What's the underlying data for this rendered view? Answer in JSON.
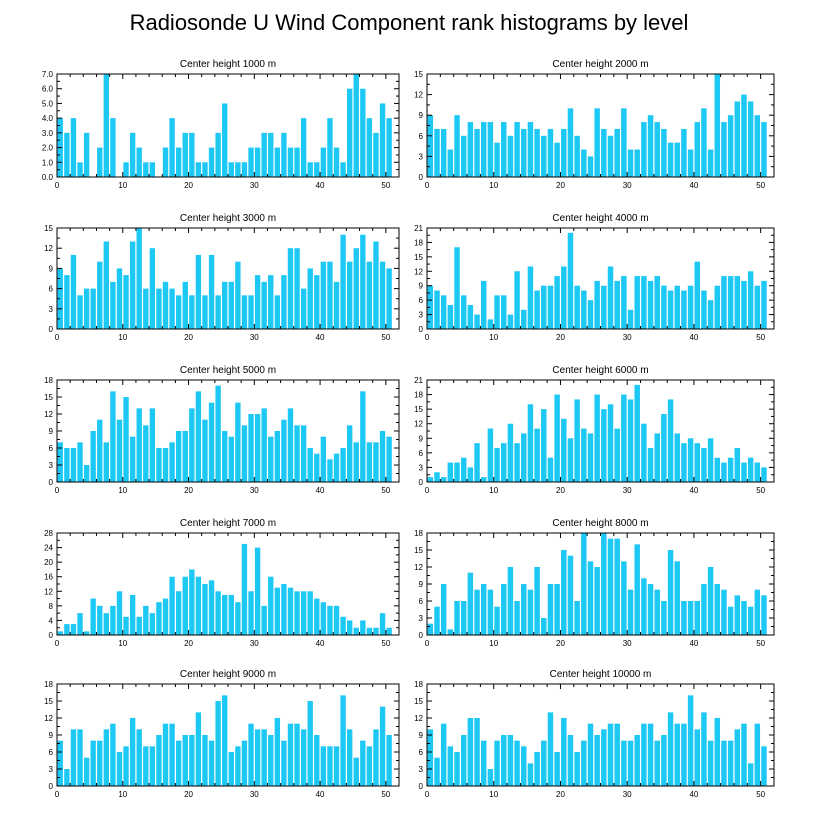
{
  "title": "Radiosonde U Wind Component rank histograms by level",
  "colors": {
    "bar": "#1ec8f5",
    "axis": "#000000"
  },
  "chart_data": [
    {
      "type": "bar",
      "title": "Center height 1000 m",
      "xlim": [
        0,
        52
      ],
      "ylim": [
        0,
        7
      ],
      "xticks": [
        0,
        10,
        20,
        30,
        40,
        50
      ],
      "yticks": [
        0,
        1,
        2,
        3,
        4,
        5,
        6,
        7
      ],
      "ytick_labels": [
        "0.0",
        "1.0",
        "2.0",
        "3.0",
        "4.0",
        "5.0",
        "6.0",
        "7.0"
      ],
      "values": [
        4,
        3,
        4,
        1,
        3,
        0,
        2,
        7,
        4,
        0,
        1,
        3,
        2,
        1,
        1,
        0,
        2,
        4,
        2,
        3,
        3,
        1,
        1,
        2,
        3,
        5,
        1,
        1,
        1,
        2,
        2,
        3,
        3,
        2,
        3,
        2,
        2,
        4,
        1,
        1,
        2,
        4,
        2,
        1,
        6,
        7,
        6,
        4,
        3,
        5,
        4
      ]
    },
    {
      "type": "bar",
      "title": "Center height 2000 m",
      "xlim": [
        0,
        52
      ],
      "ylim": [
        0,
        15
      ],
      "xticks": [
        0,
        10,
        20,
        30,
        40,
        50
      ],
      "yticks": [
        0,
        3,
        6,
        9,
        12,
        15
      ],
      "ytick_labels": [
        "0",
        "3",
        "6",
        "9",
        "12",
        "15"
      ],
      "values": [
        9,
        7,
        7,
        4,
        9,
        6,
        8,
        7,
        8,
        8,
        5,
        8,
        6,
        8,
        7,
        8,
        7,
        6,
        7,
        5,
        7,
        10,
        6,
        4,
        3,
        10,
        7,
        6,
        7,
        10,
        4,
        4,
        8,
        9,
        8,
        7,
        5,
        5,
        7,
        4,
        8,
        10,
        4,
        15,
        8,
        9,
        11,
        12,
        11,
        9,
        8
      ]
    },
    {
      "type": "bar",
      "title": "Center height 3000 m",
      "xlim": [
        0,
        52
      ],
      "ylim": [
        0,
        15
      ],
      "xticks": [
        0,
        10,
        20,
        30,
        40,
        50
      ],
      "yticks": [
        0,
        3,
        6,
        9,
        12,
        15
      ],
      "ytick_labels": [
        "0",
        "3",
        "6",
        "9",
        "12",
        "15"
      ],
      "values": [
        9,
        8,
        11,
        5,
        6,
        6,
        10,
        13,
        7,
        9,
        8,
        13,
        15,
        6,
        12,
        6,
        7,
        6,
        5,
        7,
        5,
        11,
        5,
        11,
        5,
        7,
        7,
        10,
        5,
        5,
        8,
        7,
        8,
        5,
        8,
        12,
        12,
        6,
        9,
        8,
        10,
        10,
        7,
        14,
        10,
        12,
        14,
        10,
        13,
        10,
        9
      ]
    },
    {
      "type": "bar",
      "title": "Center height 4000 m",
      "xlim": [
        0,
        52
      ],
      "ylim": [
        0,
        21
      ],
      "xticks": [
        0,
        10,
        20,
        30,
        40,
        50
      ],
      "yticks": [
        0,
        3,
        6,
        9,
        12,
        15,
        18,
        21
      ],
      "ytick_labels": [
        "0",
        "3",
        "6",
        "9",
        "12",
        "15",
        "18",
        "21"
      ],
      "values": [
        9,
        8,
        7,
        5,
        17,
        7,
        5,
        3,
        10,
        2,
        7,
        7,
        3,
        12,
        4,
        13,
        8,
        9,
        9,
        11,
        13,
        20,
        9,
        8,
        6,
        10,
        9,
        13,
        10,
        11,
        4,
        11,
        11,
        10,
        11,
        9,
        8,
        9,
        8,
        9,
        14,
        8,
        6,
        9,
        11,
        11,
        11,
        10,
        12,
        9,
        10
      ]
    },
    {
      "type": "bar",
      "title": "Center height 5000 m",
      "xlim": [
        0,
        52
      ],
      "ylim": [
        0,
        18
      ],
      "xticks": [
        0,
        10,
        20,
        30,
        40,
        50
      ],
      "yticks": [
        0,
        3,
        6,
        9,
        12,
        15,
        18
      ],
      "ytick_labels": [
        "0",
        "3",
        "6",
        "9",
        "12",
        "15",
        "18"
      ],
      "values": [
        7,
        6,
        6,
        7,
        3,
        9,
        11,
        7,
        16,
        11,
        15,
        8,
        13,
        10,
        13,
        6,
        6,
        7,
        9,
        9,
        13,
        16,
        11,
        14,
        17,
        9,
        8,
        14,
        10,
        12,
        12,
        13,
        8,
        9,
        11,
        13,
        10,
        10,
        6,
        5,
        8,
        4,
        5,
        6,
        10,
        7,
        16,
        7,
        7,
        9,
        8
      ]
    },
    {
      "type": "bar",
      "title": "Center height 6000 m",
      "xlim": [
        0,
        52
      ],
      "ylim": [
        0,
        21
      ],
      "xticks": [
        0,
        10,
        20,
        30,
        40,
        50
      ],
      "yticks": [
        0,
        3,
        6,
        9,
        12,
        15,
        18,
        21
      ],
      "ytick_labels": [
        "0",
        "3",
        "6",
        "9",
        "12",
        "15",
        "18",
        "21"
      ],
      "values": [
        1,
        2,
        1,
        4,
        4,
        5,
        3,
        8,
        1,
        11,
        7,
        8,
        12,
        8,
        10,
        16,
        11,
        15,
        5,
        18,
        13,
        9,
        17,
        11,
        10,
        18,
        15,
        16,
        11,
        18,
        17,
        20,
        12,
        7,
        10,
        14,
        17,
        10,
        8,
        9,
        8,
        7,
        9,
        5,
        4,
        5,
        7,
        4,
        5,
        4,
        3
      ]
    },
    {
      "type": "bar",
      "title": "Center height 7000 m",
      "xlim": [
        0,
        52
      ],
      "ylim": [
        0,
        28
      ],
      "xticks": [
        0,
        10,
        20,
        30,
        40,
        50
      ],
      "yticks": [
        0,
        4,
        8,
        12,
        16,
        20,
        24,
        28
      ],
      "ytick_labels": [
        "0",
        "4",
        "8",
        "12",
        "16",
        "20",
        "24",
        "28"
      ],
      "values": [
        1,
        3,
        3,
        6,
        1,
        10,
        8,
        6,
        8,
        12,
        5,
        11,
        5,
        8,
        6,
        9,
        10,
        16,
        12,
        16,
        18,
        16,
        14,
        15,
        12,
        11,
        11,
        9,
        25,
        12,
        24,
        8,
        16,
        13,
        14,
        13,
        12,
        12,
        12,
        10,
        9,
        8,
        8,
        5,
        4,
        2,
        4,
        2,
        2,
        6,
        2
      ]
    },
    {
      "type": "bar",
      "title": "Center height 8000 m",
      "xlim": [
        0,
        52
      ],
      "ylim": [
        0,
        18
      ],
      "xticks": [
        0,
        10,
        20,
        30,
        40,
        50
      ],
      "yticks": [
        0,
        3,
        6,
        9,
        12,
        15,
        18
      ],
      "ytick_labels": [
        "0",
        "3",
        "6",
        "9",
        "12",
        "15",
        "18"
      ],
      "values": [
        2,
        5,
        9,
        1,
        6,
        6,
        11,
        8,
        9,
        8,
        5,
        9,
        12,
        6,
        9,
        8,
        12,
        3,
        9,
        9,
        15,
        14,
        6,
        18,
        13,
        12,
        18,
        17,
        17,
        13,
        8,
        16,
        10,
        9,
        8,
        6,
        15,
        13,
        6,
        6,
        6,
        9,
        12,
        9,
        8,
        5,
        7,
        6,
        5,
        8,
        7
      ]
    },
    {
      "type": "bar",
      "title": "Center height 9000 m",
      "xlim": [
        0,
        52
      ],
      "ylim": [
        0,
        18
      ],
      "xticks": [
        0,
        10,
        20,
        30,
        40,
        50
      ],
      "yticks": [
        0,
        3,
        6,
        9,
        12,
        15,
        18
      ],
      "ytick_labels": [
        "0",
        "3",
        "6",
        "9",
        "12",
        "15",
        "18"
      ],
      "values": [
        8,
        3,
        10,
        10,
        5,
        8,
        8,
        10,
        11,
        6,
        7,
        12,
        10,
        7,
        7,
        9,
        11,
        11,
        8,
        9,
        9,
        13,
        9,
        8,
        15,
        16,
        6,
        7,
        8,
        11,
        10,
        10,
        9,
        12,
        8,
        11,
        11,
        10,
        15,
        9,
        7,
        7,
        7,
        16,
        10,
        5,
        8,
        7,
        10,
        14,
        9
      ]
    },
    {
      "type": "bar",
      "title": "Center height 10000 m",
      "xlim": [
        0,
        52
      ],
      "ylim": [
        0,
        18
      ],
      "xticks": [
        0,
        10,
        20,
        30,
        40,
        50
      ],
      "yticks": [
        0,
        3,
        6,
        9,
        12,
        15,
        18
      ],
      "ytick_labels": [
        "0",
        "3",
        "6",
        "9",
        "12",
        "15",
        "18"
      ],
      "values": [
        10,
        5,
        11,
        7,
        6,
        9,
        12,
        12,
        8,
        3,
        8,
        9,
        9,
        8,
        7,
        4,
        6,
        8,
        13,
        6,
        12,
        9,
        6,
        8,
        11,
        9,
        10,
        11,
        11,
        8,
        8,
        9,
        11,
        11,
        8,
        9,
        13,
        11,
        11,
        16,
        10,
        13,
        8,
        12,
        8,
        8,
        10,
        11,
        4,
        11,
        7
      ]
    }
  ]
}
